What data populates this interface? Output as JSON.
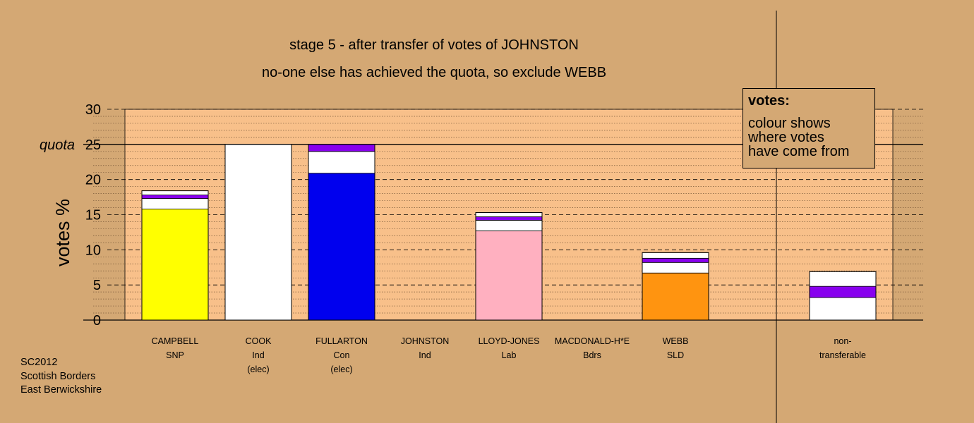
{
  "chart_data": {
    "type": "bar",
    "title": "stage 5 - after transfer of votes of JOHNSTON",
    "subtitle": "no-one else has achieved the quota, so exclude WEBB",
    "ylabel": "votes %",
    "ylim": [
      0,
      30
    ],
    "yticks": [
      "0",
      "5",
      "10",
      "15",
      "20",
      "25",
      "30"
    ],
    "quota_label": "quota",
    "quota_value": 25,
    "grid": true,
    "categories": [
      {
        "name": "CAMPBELL",
        "party": "SNP",
        "note": ""
      },
      {
        "name": "COOK",
        "party": "Ind",
        "note": "(elec)"
      },
      {
        "name": "FULLARTON",
        "party": "Con",
        "note": "(elec)"
      },
      {
        "name": "JOHNSTON",
        "party": "Ind",
        "note": ""
      },
      {
        "name": "LLOYD-JONES",
        "party": "Lab",
        "note": ""
      },
      {
        "name": "MACDONALD-H*E",
        "party": "Bdrs",
        "note": ""
      },
      {
        "name": "WEBB",
        "party": "SLD",
        "note": ""
      },
      {
        "name": "non-",
        "party": "transferable",
        "note": ""
      }
    ],
    "bars": [
      {
        "segments": [
          {
            "color": "#ffff00",
            "value": 15.8
          },
          {
            "color": "#ffffff",
            "value": 1.5
          },
          {
            "color": "#8800ee",
            "value": 0.5
          },
          {
            "color": "#ffffff",
            "value": 0.6
          }
        ]
      },
      {
        "segments": [
          {
            "color": "#ffffff",
            "value": 25.0
          }
        ]
      },
      {
        "segments": [
          {
            "color": "#0000ee",
            "value": 20.9
          },
          {
            "color": "#ffffff",
            "value": 3.1
          },
          {
            "color": "#8800ee",
            "value": 1.0
          }
        ]
      },
      {
        "segments": []
      },
      {
        "segments": [
          {
            "color": "#ffb0c0",
            "value": 12.7
          },
          {
            "color": "#ffffff",
            "value": 1.5
          },
          {
            "color": "#8800ee",
            "value": 0.5
          },
          {
            "color": "#ffffff",
            "value": 0.6
          }
        ]
      },
      {
        "segments": []
      },
      {
        "segments": [
          {
            "color": "#ff9410",
            "value": 6.7
          },
          {
            "color": "#ffffff",
            "value": 1.5
          },
          {
            "color": "#8800ee",
            "value": 0.6
          },
          {
            "color": "#ffffff",
            "value": 0.8
          }
        ]
      },
      {
        "segments": [
          {
            "color": "#ffffff",
            "value": 3.2
          },
          {
            "color": "#8800ee",
            "value": 1.6
          },
          {
            "color": "#ffffff",
            "value": 2.1
          }
        ]
      }
    ],
    "colors": {
      "background": "#d4a874",
      "plot": "#f8c08a"
    }
  },
  "legend": {
    "title": "votes:",
    "line1": "colour shows",
    "line2": "where votes",
    "line3": "have come from"
  },
  "footer": {
    "line1": "SC2012",
    "line2": "Scottish Borders",
    "line3": "East Berwickshire"
  }
}
